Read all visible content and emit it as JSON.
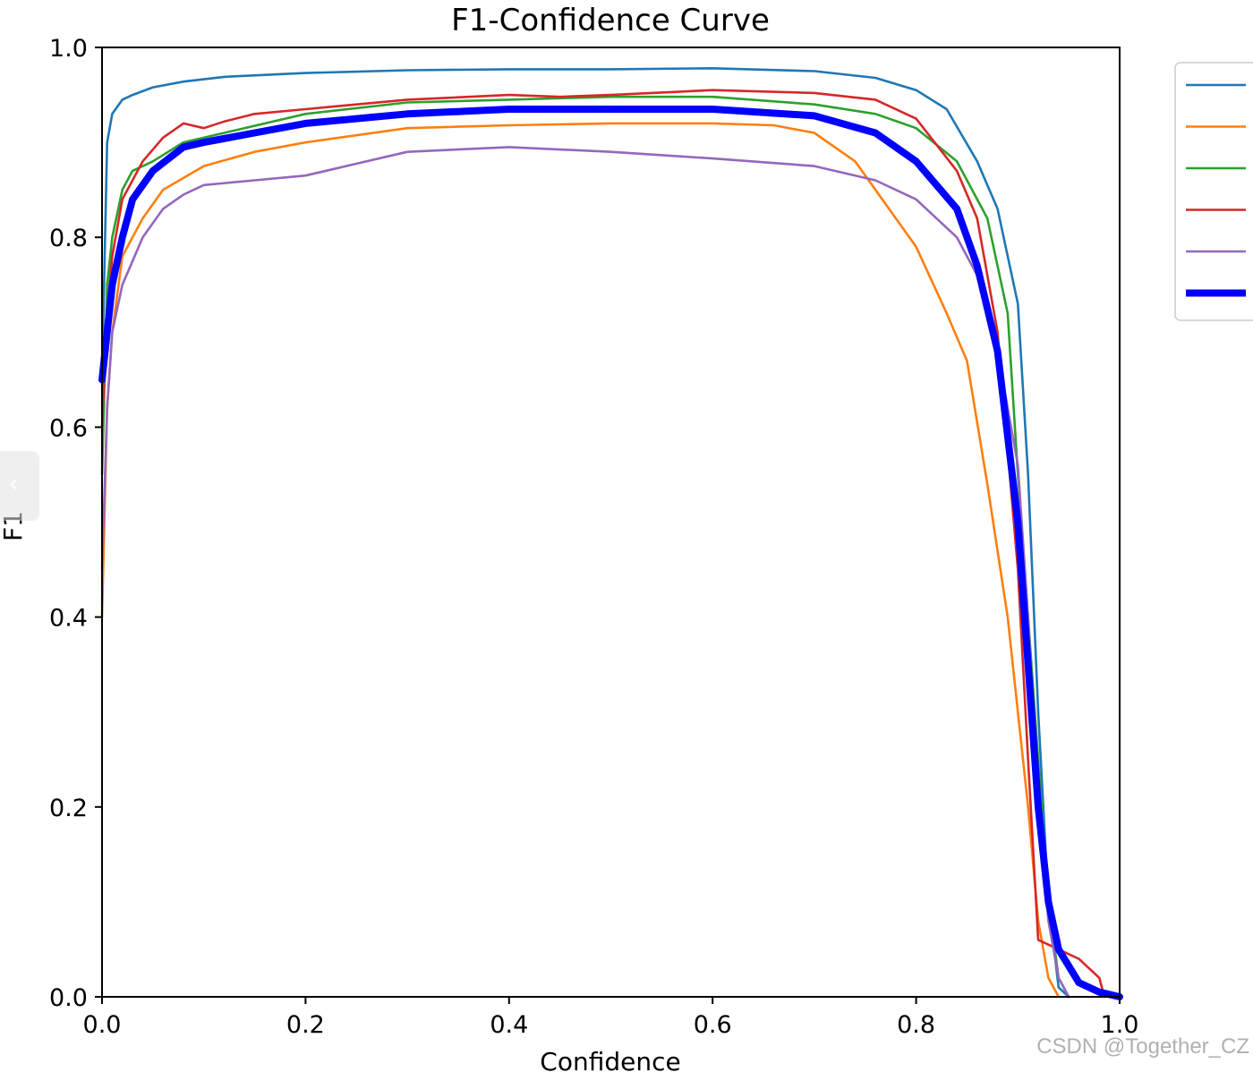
{
  "chart_data": {
    "type": "line",
    "title": "F1-Confidence Curve",
    "xlabel": "Confidence",
    "ylabel": "F1",
    "xlim": [
      0,
      1
    ],
    "ylim": [
      0,
      1
    ],
    "xticks": [
      "0.0",
      "0.2",
      "0.4",
      "0.6",
      "0.8",
      "1.0"
    ],
    "yticks": [
      "0.0",
      "0.2",
      "0.4",
      "0.6",
      "0.8",
      "1.0"
    ],
    "grid": false,
    "legend_position": "upper-right, outside plot (clipped)",
    "series": [
      {
        "color": "#1f77b4",
        "x": [
          0.0,
          0.005,
          0.01,
          0.02,
          0.03,
          0.05,
          0.08,
          0.12,
          0.2,
          0.3,
          0.4,
          0.5,
          0.6,
          0.7,
          0.76,
          0.8,
          0.83,
          0.86,
          0.88,
          0.9,
          0.91,
          0.92,
          0.93,
          0.94,
          0.95
        ],
        "y": [
          0.65,
          0.9,
          0.93,
          0.945,
          0.95,
          0.958,
          0.964,
          0.969,
          0.973,
          0.976,
          0.977,
          0.977,
          0.978,
          0.975,
          0.968,
          0.955,
          0.935,
          0.88,
          0.83,
          0.73,
          0.55,
          0.3,
          0.1,
          0.01,
          0.0
        ]
      },
      {
        "color": "#ff7f0e",
        "x": [
          0.0,
          0.005,
          0.01,
          0.02,
          0.04,
          0.06,
          0.1,
          0.15,
          0.2,
          0.3,
          0.4,
          0.5,
          0.6,
          0.66,
          0.7,
          0.74,
          0.78,
          0.8,
          0.83,
          0.85,
          0.87,
          0.89,
          0.9,
          0.91,
          0.92,
          0.93,
          0.94
        ],
        "y": [
          0.4,
          0.62,
          0.7,
          0.78,
          0.82,
          0.85,
          0.875,
          0.89,
          0.9,
          0.915,
          0.918,
          0.92,
          0.92,
          0.918,
          0.91,
          0.88,
          0.82,
          0.79,
          0.72,
          0.67,
          0.54,
          0.4,
          0.3,
          0.2,
          0.08,
          0.02,
          0.0
        ]
      },
      {
        "color": "#2ca02c",
        "x": [
          0.0,
          0.005,
          0.01,
          0.02,
          0.03,
          0.05,
          0.08,
          0.12,
          0.2,
          0.3,
          0.4,
          0.5,
          0.6,
          0.7,
          0.76,
          0.8,
          0.84,
          0.87,
          0.89,
          0.9,
          0.91,
          0.92,
          0.93,
          0.94,
          0.95
        ],
        "y": [
          0.55,
          0.75,
          0.8,
          0.85,
          0.87,
          0.88,
          0.9,
          0.91,
          0.93,
          0.942,
          0.945,
          0.948,
          0.948,
          0.94,
          0.93,
          0.915,
          0.88,
          0.82,
          0.72,
          0.55,
          0.4,
          0.25,
          0.1,
          0.02,
          0.0
        ]
      },
      {
        "color": "#d62728",
        "x": [
          0.0,
          0.005,
          0.01,
          0.02,
          0.04,
          0.06,
          0.08,
          0.1,
          0.12,
          0.15,
          0.2,
          0.3,
          0.4,
          0.45,
          0.5,
          0.6,
          0.7,
          0.76,
          0.8,
          0.84,
          0.86,
          0.88,
          0.9,
          0.91,
          0.92,
          0.94,
          0.96,
          0.98,
          0.985
        ],
        "y": [
          0.6,
          0.72,
          0.78,
          0.84,
          0.88,
          0.905,
          0.92,
          0.915,
          0.922,
          0.93,
          0.935,
          0.945,
          0.95,
          0.948,
          0.95,
          0.955,
          0.952,
          0.945,
          0.925,
          0.87,
          0.82,
          0.7,
          0.45,
          0.25,
          0.06,
          0.05,
          0.04,
          0.02,
          0.0
        ]
      },
      {
        "color": "#9467bd",
        "x": [
          0.0,
          0.005,
          0.01,
          0.02,
          0.04,
          0.06,
          0.08,
          0.1,
          0.15,
          0.2,
          0.3,
          0.4,
          0.5,
          0.6,
          0.7,
          0.76,
          0.8,
          0.84,
          0.86,
          0.88,
          0.9,
          0.91,
          0.92,
          0.93,
          0.94,
          0.95
        ],
        "y": [
          0.45,
          0.62,
          0.7,
          0.75,
          0.8,
          0.83,
          0.845,
          0.855,
          0.86,
          0.865,
          0.89,
          0.895,
          0.89,
          0.883,
          0.875,
          0.86,
          0.84,
          0.8,
          0.76,
          0.68,
          0.56,
          0.4,
          0.2,
          0.08,
          0.02,
          0.0
        ]
      },
      {
        "color": "#0000ff",
        "x": [
          0.0,
          0.01,
          0.02,
          0.03,
          0.05,
          0.08,
          0.1,
          0.15,
          0.2,
          0.3,
          0.4,
          0.5,
          0.6,
          0.7,
          0.76,
          0.8,
          0.84,
          0.86,
          0.88,
          0.9,
          0.91,
          0.92,
          0.93,
          0.94,
          0.96,
          0.98,
          1.0
        ],
        "y": [
          0.65,
          0.75,
          0.8,
          0.84,
          0.87,
          0.895,
          0.9,
          0.91,
          0.92,
          0.93,
          0.935,
          0.935,
          0.935,
          0.928,
          0.91,
          0.88,
          0.83,
          0.77,
          0.68,
          0.5,
          0.35,
          0.2,
          0.1,
          0.05,
          0.015,
          0.005,
          0.0
        ]
      }
    ]
  },
  "watermark": "CSDN @Together_CZ",
  "nav": {
    "prev_icon": "chevron-left-icon",
    "prev_glyph": "‹"
  }
}
